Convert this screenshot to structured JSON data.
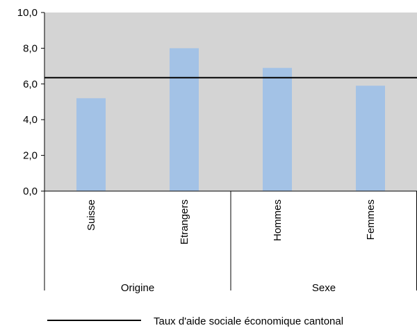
{
  "chart_data": {
    "type": "bar",
    "categories": [
      "Suisse",
      "Etrangers",
      "Hommes",
      "Femmes"
    ],
    "groups": [
      {
        "label": "Origine",
        "categories": [
          "Suisse",
          "Etrangers"
        ]
      },
      {
        "label": "Sexe",
        "categories": [
          "Hommes",
          "Femmes"
        ]
      }
    ],
    "values": [
      5.2,
      8.0,
      6.9,
      5.9
    ],
    "reference_line": {
      "value": 6.35,
      "label": "Taux d'aide sociale économique cantonal"
    },
    "ylim": [
      0,
      10
    ],
    "y_ticks": [
      "0,0",
      "2,0",
      "4,0",
      "6,0",
      "8,0",
      "10,0"
    ],
    "grid": false,
    "legend_position": "bottom",
    "colors": {
      "bar": "#a3c2e6",
      "plot_background": "#d4d4d4",
      "reference_line": "#000000",
      "axis": "#000000"
    }
  }
}
